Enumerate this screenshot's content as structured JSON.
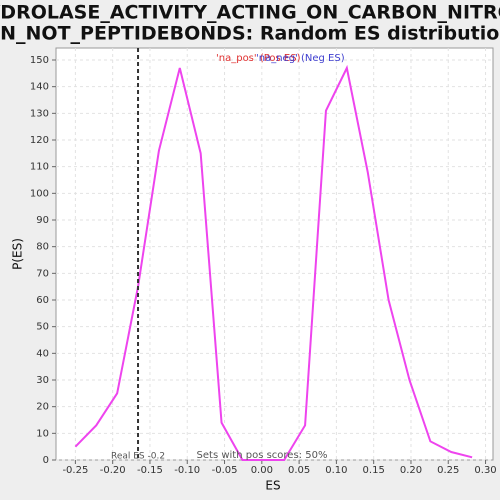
{
  "chart_data": {
    "type": "line",
    "title": "HYDROLASE_ACTIVITY_ACTING_ON_CARBON_NITROG",
    "title_line2": "EN_NOT_PEPTIDEBONDS: Random ES distribution",
    "x_label": "ES",
    "y_label": "P(ES)",
    "x": [
      -0.25,
      -0.222,
      -0.194,
      -0.166,
      -0.138,
      -0.11,
      -0.082,
      -0.054,
      -0.026,
      0.002,
      0.03,
      0.058,
      0.086,
      0.114,
      0.142,
      0.17,
      0.198,
      0.226,
      0.254,
      0.282
    ],
    "series": [
      {
        "color": "#ee44ee",
        "values": [
          5,
          13,
          25,
          65,
          116,
          147,
          115,
          14,
          0,
          0,
          0,
          13,
          131,
          147,
          108,
          60,
          30,
          7,
          3,
          1
        ]
      }
    ],
    "legend": [
      {
        "name": "'na_pos' (Pos ES)",
        "color": "#e03030"
      },
      {
        "name": "'na_neg' (Neg ES)",
        "color": "#4040d0"
      }
    ],
    "real_es": {
      "value": -0.166,
      "label": "Real ES -0.2"
    },
    "annotation": "Sets with pos scores: 50%",
    "xlim": [
      -0.276,
      0.31
    ],
    "ylim": [
      0,
      154.5
    ],
    "xticks": [
      -0.25,
      {
        "value": -0.2,
        "label": "-0.20"
      },
      -0.15,
      {
        "value": -0.1,
        "label": "-0.10"
      },
      -0.05,
      {
        "value": 0,
        "label": "0.00"
      },
      0.05,
      {
        "value": 0.1,
        "label": "0.10"
      },
      0.15,
      {
        "value": 0.2,
        "label": "0.20"
      },
      0.25,
      {
        "value": 0.3,
        "label": "0.30"
      }
    ],
    "yticks": [
      0,
      10,
      20,
      30,
      40,
      50,
      60,
      70,
      80,
      90,
      100,
      110,
      120,
      130,
      140,
      150
    ],
    "grid": true
  }
}
